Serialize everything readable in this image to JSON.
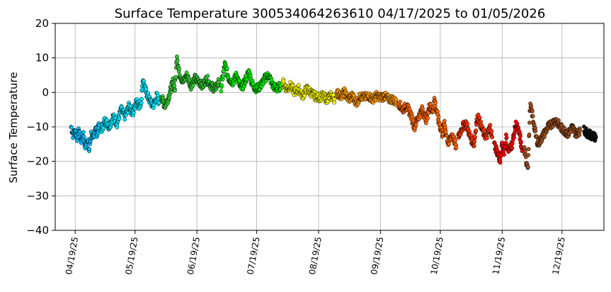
{
  "chart_data": {
    "type": "scatter",
    "title": "Surface Temperature 300534064263610  04/17/2025 to 01/05/2026",
    "ylabel": "Surface Temperature",
    "xlabel": "",
    "x_range": [
      "2025-04-09",
      "2026-01-09"
    ],
    "ylim": [
      -40,
      20
    ],
    "y_ticks": [
      -40,
      -30,
      -20,
      -10,
      0,
      10,
      20
    ],
    "x_ticks": [
      {
        "date": "2025-04-19",
        "label": "04/19/25"
      },
      {
        "date": "2025-05-19",
        "label": "05/19/25"
      },
      {
        "date": "2025-06-19",
        "label": "06/19/25"
      },
      {
        "date": "2025-07-19",
        "label": "07/19/25"
      },
      {
        "date": "2025-08-19",
        "label": "08/19/25"
      },
      {
        "date": "2025-09-19",
        "label": "09/19/25"
      },
      {
        "date": "2025-10-19",
        "label": "10/19/25"
      },
      {
        "date": "2025-11-19",
        "label": "11/19/25"
      },
      {
        "date": "2025-12-19",
        "label": "12/19/25"
      }
    ],
    "grid": true,
    "series": [
      {
        "color": "#00bfff",
        "points": [
          [
            "2025-04-17",
            -10
          ],
          [
            "2025-04-18",
            -12.5
          ],
          [
            "2025-04-19",
            -11
          ],
          [
            "2025-04-20",
            -13
          ],
          [
            "2025-04-21",
            -11
          ],
          [
            "2025-04-22",
            -14
          ],
          [
            "2025-04-23",
            -12
          ],
          [
            "2025-04-24",
            -16
          ],
          [
            "2025-04-25",
            -13
          ],
          [
            "2025-04-26",
            -17
          ],
          [
            "2025-04-27",
            -12
          ],
          [
            "2025-04-28",
            -14
          ],
          [
            "2025-04-29",
            -10
          ],
          [
            "2025-04-30",
            -12
          ],
          [
            "2025-05-01",
            -9.5
          ]
        ]
      },
      {
        "color": "#00e5ff",
        "points": [
          [
            "2025-05-02",
            -11
          ],
          [
            "2025-05-04",
            -8
          ],
          [
            "2025-05-06",
            -10
          ],
          [
            "2025-05-08",
            -7
          ],
          [
            "2025-05-10",
            -9
          ],
          [
            "2025-05-12",
            -5
          ],
          [
            "2025-05-14",
            -7
          ],
          [
            "2025-05-16",
            -4
          ],
          [
            "2025-05-18",
            -6
          ],
          [
            "2025-05-20",
            -2
          ],
          [
            "2025-05-21",
            -4
          ],
          [
            "2025-05-22",
            -3
          ],
          [
            "2025-05-23",
            4
          ],
          [
            "2025-05-24",
            1
          ],
          [
            "2025-05-26",
            -2
          ],
          [
            "2025-05-28",
            -4
          ],
          [
            "2025-05-30",
            -1
          ],
          [
            "2025-05-31",
            -3
          ]
        ]
      },
      {
        "color": "#32c832",
        "points": [
          [
            "2025-06-01",
            -1
          ],
          [
            "2025-06-03",
            -4
          ],
          [
            "2025-06-05",
            -1
          ],
          [
            "2025-06-07",
            3
          ],
          [
            "2025-06-08",
            1
          ],
          [
            "2025-06-09",
            11
          ],
          [
            "2025-06-10",
            6
          ],
          [
            "2025-06-12",
            3
          ],
          [
            "2025-06-14",
            5
          ],
          [
            "2025-06-16",
            2
          ],
          [
            "2025-06-18",
            4
          ],
          [
            "2025-06-20",
            3
          ],
          [
            "2025-06-22",
            2
          ],
          [
            "2025-06-24",
            4
          ],
          [
            "2025-06-26",
            2
          ],
          [
            "2025-06-28",
            1
          ],
          [
            "2025-06-30",
            3
          ]
        ]
      },
      {
        "color": "#00ee00",
        "points": [
          [
            "2025-07-01",
            1
          ],
          [
            "2025-07-03",
            8
          ],
          [
            "2025-07-05",
            4
          ],
          [
            "2025-07-07",
            3
          ],
          [
            "2025-07-09",
            5
          ],
          [
            "2025-07-11",
            1
          ],
          [
            "2025-07-13",
            3
          ],
          [
            "2025-07-15",
            6
          ],
          [
            "2025-07-17",
            2
          ],
          [
            "2025-07-19",
            1
          ],
          [
            "2025-07-21",
            2
          ],
          [
            "2025-07-23",
            4
          ],
          [
            "2025-07-25",
            5
          ],
          [
            "2025-07-27",
            2
          ],
          [
            "2025-07-29",
            1
          ],
          [
            "2025-07-31",
            2
          ]
        ]
      },
      {
        "color": "#ffff00",
        "points": [
          [
            "2025-08-01",
            3
          ],
          [
            "2025-08-03",
            1
          ],
          [
            "2025-08-05",
            2
          ],
          [
            "2025-08-07",
            0
          ],
          [
            "2025-08-09",
            1
          ],
          [
            "2025-08-11",
            -1
          ],
          [
            "2025-08-13",
            1
          ],
          [
            "2025-08-15",
            0
          ],
          [
            "2025-08-17",
            -1
          ],
          [
            "2025-08-19",
            -1.5
          ],
          [
            "2025-08-21",
            -1
          ],
          [
            "2025-08-23",
            -2
          ],
          [
            "2025-08-25",
            -1
          ],
          [
            "2025-08-27",
            -2
          ]
        ]
      },
      {
        "color": "#ff9900",
        "points": [
          [
            "2025-08-28",
            0
          ],
          [
            "2025-08-30",
            -1
          ],
          [
            "2025-09-01",
            0
          ],
          [
            "2025-09-03",
            -2
          ],
          [
            "2025-09-05",
            -1
          ],
          [
            "2025-09-07",
            -3
          ],
          [
            "2025-09-09",
            -1
          ],
          [
            "2025-09-11",
            -1.5
          ],
          [
            "2025-09-13",
            -1
          ],
          [
            "2025-09-15",
            -2
          ],
          [
            "2025-09-17",
            -1
          ],
          [
            "2025-09-19",
            -1.5
          ],
          [
            "2025-09-21",
            -1
          ],
          [
            "2025-09-23",
            -2
          ],
          [
            "2025-09-25",
            -2
          ],
          [
            "2025-09-27",
            -3
          ]
        ]
      },
      {
        "color": "#ff6600",
        "points": [
          [
            "2025-09-28",
            -3
          ],
          [
            "2025-09-30",
            -5
          ],
          [
            "2025-10-02",
            -4
          ],
          [
            "2025-10-04",
            -6
          ],
          [
            "2025-10-06",
            -10
          ],
          [
            "2025-10-08",
            -7
          ],
          [
            "2025-10-10",
            -5
          ],
          [
            "2025-10-12",
            -8
          ],
          [
            "2025-10-14",
            -3
          ],
          [
            "2025-10-15",
            -6
          ],
          [
            "2025-10-16",
            -2
          ],
          [
            "2025-10-18",
            -8
          ],
          [
            "2025-10-20",
            -12
          ],
          [
            "2025-10-21",
            -9
          ],
          [
            "2025-10-23",
            -15
          ],
          [
            "2025-10-25",
            -12
          ],
          [
            "2025-10-27",
            -16
          ]
        ]
      },
      {
        "color": "#ff3300",
        "points": [
          [
            "2025-10-28",
            -13
          ],
          [
            "2025-10-30",
            -10
          ],
          [
            "2025-11-01",
            -9
          ],
          [
            "2025-11-03",
            -13
          ],
          [
            "2025-11-05",
            -15
          ],
          [
            "2025-11-06",
            -9
          ],
          [
            "2025-11-07",
            -7
          ],
          [
            "2025-11-09",
            -11
          ],
          [
            "2025-11-11",
            -13
          ],
          [
            "2025-11-13",
            -10
          ],
          [
            "2025-11-14",
            -13
          ]
        ]
      },
      {
        "color": "#ff0000",
        "points": [
          [
            "2025-11-15",
            -15
          ],
          [
            "2025-11-17",
            -18
          ],
          [
            "2025-11-18",
            -20
          ],
          [
            "2025-11-19",
            -15
          ],
          [
            "2025-11-20",
            -17
          ],
          [
            "2025-11-21",
            -13
          ],
          [
            "2025-11-22",
            -17
          ],
          [
            "2025-11-24",
            -15
          ],
          [
            "2025-11-25",
            -12
          ],
          [
            "2025-11-26",
            -9
          ],
          [
            "2025-11-28",
            -13
          ],
          [
            "2025-11-29",
            -17
          ]
        ]
      },
      {
        "color": "#a05020",
        "points": [
          [
            "2025-11-30",
            -16
          ],
          [
            "2025-12-01",
            -20
          ],
          [
            "2025-12-02",
            -21
          ],
          [
            "2025-12-03",
            -4
          ],
          [
            "2025-12-04",
            -6
          ],
          [
            "2025-12-06",
            -13
          ],
          [
            "2025-12-07",
            -15
          ],
          [
            "2025-12-08",
            -14
          ],
          [
            "2025-12-09",
            -13
          ],
          [
            "2025-12-11",
            -11
          ],
          [
            "2025-12-12",
            -10
          ],
          [
            "2025-12-14",
            -9
          ],
          [
            "2025-12-16",
            -8
          ],
          [
            "2025-12-18",
            -10
          ],
          [
            "2025-12-20",
            -11
          ],
          [
            "2025-12-22",
            -12
          ],
          [
            "2025-12-24",
            -10
          ],
          [
            "2025-12-26",
            -12
          ],
          [
            "2025-12-28",
            -11
          ]
        ]
      },
      {
        "color": "#111111",
        "points": [
          [
            "2025-12-30",
            -11
          ],
          [
            "2026-01-01",
            -12
          ],
          [
            "2026-01-03",
            -12.5
          ],
          [
            "2026-01-05",
            -13
          ]
        ]
      }
    ]
  }
}
